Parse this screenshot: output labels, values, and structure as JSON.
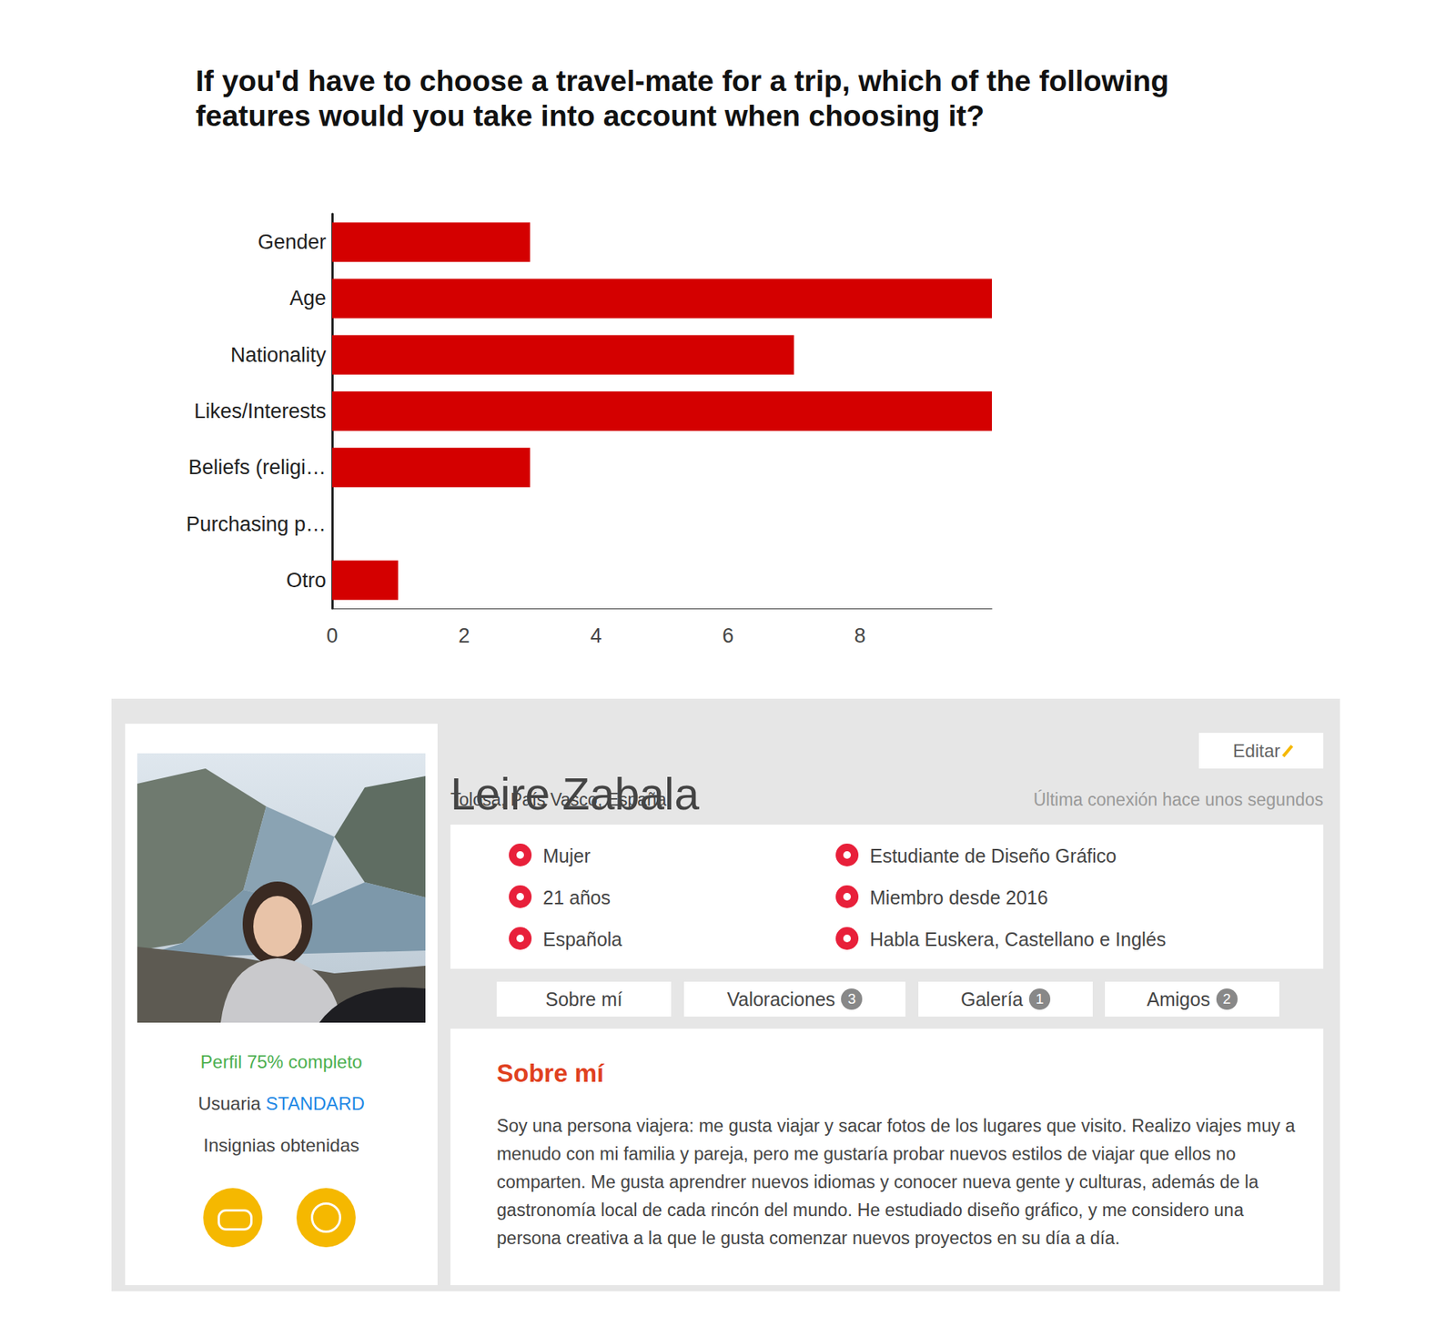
{
  "chart_data": {
    "type": "bar",
    "orientation": "horizontal",
    "title": "If you'd have to choose a travel-mate for a trip, which of the following features would you take into account when choosing it?",
    "categories": [
      "Gender",
      "Age",
      "Nationality",
      "Likes/Interests",
      "Beliefs (religi…",
      "Purchasing p…",
      "Otro"
    ],
    "values": [
      3,
      10,
      7,
      10,
      3,
      0,
      1
    ],
    "color": "#d40000",
    "xlim": [
      0,
      10
    ],
    "xticks": [
      0,
      2,
      4,
      6,
      8
    ],
    "grid": false
  },
  "profile": {
    "name": "Leire Zabala",
    "location": "Tolosa, País Vasco, España",
    "last_seen": "Última conexión hace unos segundos",
    "edit_button": "Editar",
    "sidebar": {
      "profile_complete": "Perfil 75% completo",
      "user_label": "Usuaria",
      "user_type": "STANDARD",
      "badges_label": "Insignias obtenidas"
    },
    "details": [
      "Mujer",
      "Estudiante de Diseño Gráfico",
      "21 años",
      "Miembro desde 2016",
      "Española",
      "Habla Euskera, Castellano e Inglés"
    ],
    "tabs": [
      {
        "label": "Sobre mí"
      },
      {
        "label": "Valoraciones",
        "count": 3
      },
      {
        "label": "Galería",
        "count": 1
      },
      {
        "label": "Amigos",
        "count": 2
      }
    ],
    "about": {
      "heading": "Sobre mí",
      "text": "Soy una persona viajera: me gusta viajar y sacar fotos de los lugares que visito. Realizo viajes muy a menudo con mi familia y pareja, pero me gustaría probar nuevos estilos de viajar que ellos no comparten. Me gusta aprendrer nuevos idiomas y conocer nueva gente y culturas, además de la gastronomía local de cada rincón del mundo. He estudiado diseño gráfico, y me considero una persona creativa a la que le gusta comenzar nuevos proyectos en su día a día."
    }
  }
}
